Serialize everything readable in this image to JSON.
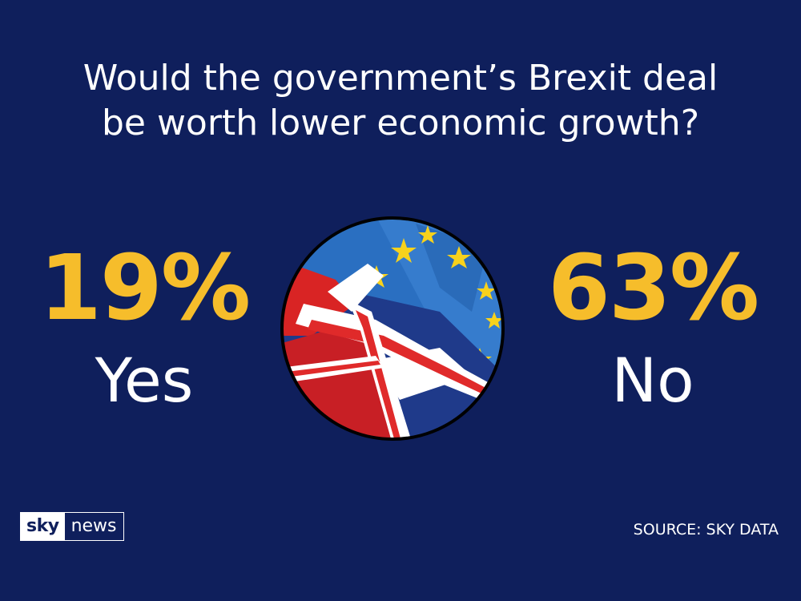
{
  "chart_data": {
    "type": "table",
    "title": "Would the government’s Brexit deal be worth lower economic growth?",
    "title_lines": [
      "Would the government’s Brexit deal",
      "be worth lower economic growth?"
    ],
    "categories": [
      "Yes",
      "No"
    ],
    "values": [
      19,
      63
    ],
    "value_labels": [
      "19%",
      "63%"
    ],
    "colors": {
      "background": "#0f1f5c",
      "value": "#f6bd2b",
      "text": "#ffffff"
    }
  },
  "branding": {
    "logo_sky": "sky",
    "logo_news": "news",
    "source": "SOURCE: SKY DATA"
  },
  "image": {
    "description_icon": "eu-uk-flags-icon"
  }
}
